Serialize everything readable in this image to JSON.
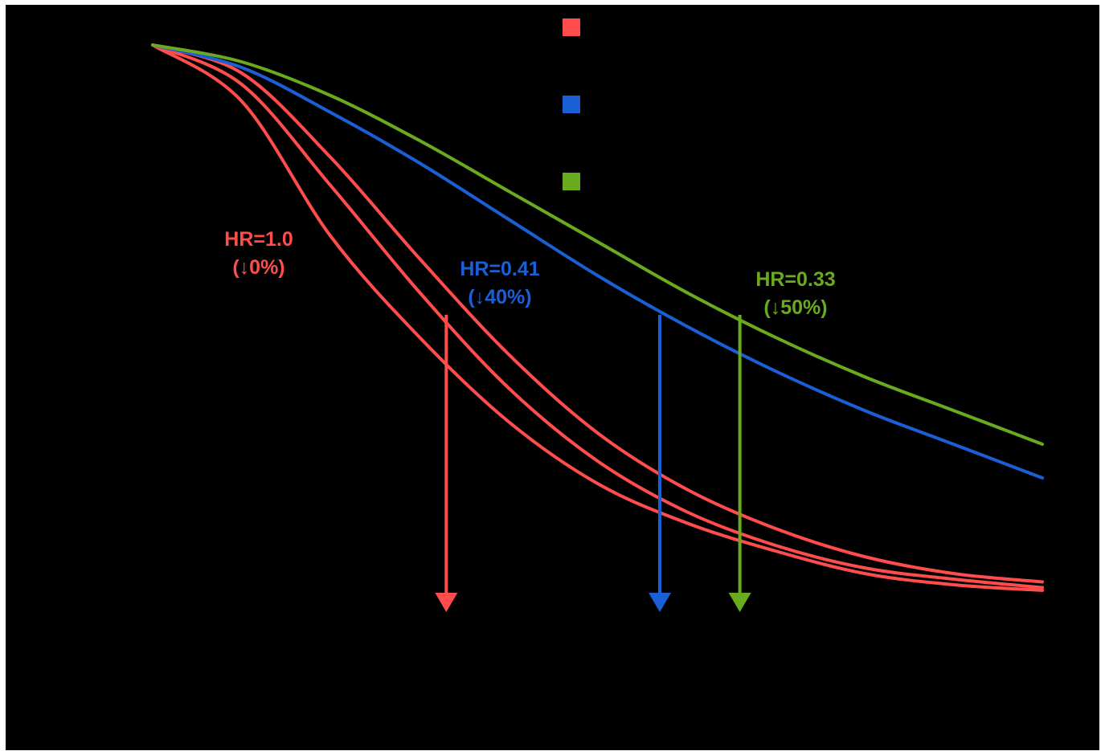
{
  "chart_data": {
    "type": "line",
    "x_unit_note": "",
    "title": "",
    "xlabel": "",
    "ylabel": "",
    "xlim": [
      0,
      100
    ],
    "ylim": [
      0,
      100
    ],
    "grid": false,
    "legend": {
      "placement": "top-center",
      "entries": [
        {
          "name": "",
          "color": "#ff4d4d"
        },
        {
          "name": "",
          "color": "#1a5fd6"
        },
        {
          "name": "",
          "color": "#6aaa1e"
        }
      ]
    },
    "series": [
      {
        "color": "#ff4d4d",
        "x": [
          0,
          10,
          20,
          30,
          40,
          50,
          60,
          70,
          80,
          90,
          100
        ],
        "y": [
          100,
          90,
          66,
          48,
          33,
          22,
          15,
          10,
          6,
          4,
          3
        ]
      },
      {
        "color": "#ff4d4d",
        "x": [
          0,
          10,
          20,
          30,
          40,
          50,
          60,
          70,
          80,
          90,
          100
        ],
        "y": [
          100,
          93,
          75,
          56,
          39,
          26,
          17,
          11,
          7,
          5,
          3.5
        ]
      },
      {
        "color": "#ff4d4d",
        "x": [
          0,
          10,
          20,
          30,
          40,
          50,
          60,
          70,
          80,
          90,
          100
        ],
        "y": [
          100,
          95,
          80,
          62,
          45,
          31,
          21,
          14,
          9,
          6,
          4.5
        ]
      },
      {
        "color": "#1a5fd6",
        "x": [
          0,
          10,
          20,
          30,
          40,
          50,
          60,
          70,
          80,
          90,
          100
        ],
        "y": [
          100,
          96,
          88,
          79,
          69,
          59,
          50,
          42,
          35,
          29,
          23
        ]
      },
      {
        "color": "#6aaa1e",
        "x": [
          0,
          10,
          20,
          30,
          40,
          50,
          60,
          70,
          80,
          90,
          100
        ],
        "y": [
          100,
          97,
          91,
          83,
          74,
          65,
          56,
          48,
          41,
          35,
          29
        ]
      }
    ],
    "markers": [
      {
        "x": 33,
        "from_y": 52,
        "to_y": 0,
        "color": "#ff4d4d"
      },
      {
        "x": 57,
        "from_y": 52,
        "to_y": 0,
        "color": "#1a5fd6"
      },
      {
        "x": 66,
        "from_y": 52,
        "to_y": 0,
        "color": "#6aaa1e"
      }
    ],
    "annotations": [
      {
        "line1": "HR=1.0",
        "line2": "(↓0%)",
        "color": "#ff4d4d"
      },
      {
        "line1": "HR=0.41",
        "line2": "(↓40%)",
        "color": "#1a5fd6"
      },
      {
        "line1": "HR=0.33",
        "line2": "(↓50%)",
        "color": "#6aaa1e"
      }
    ]
  }
}
